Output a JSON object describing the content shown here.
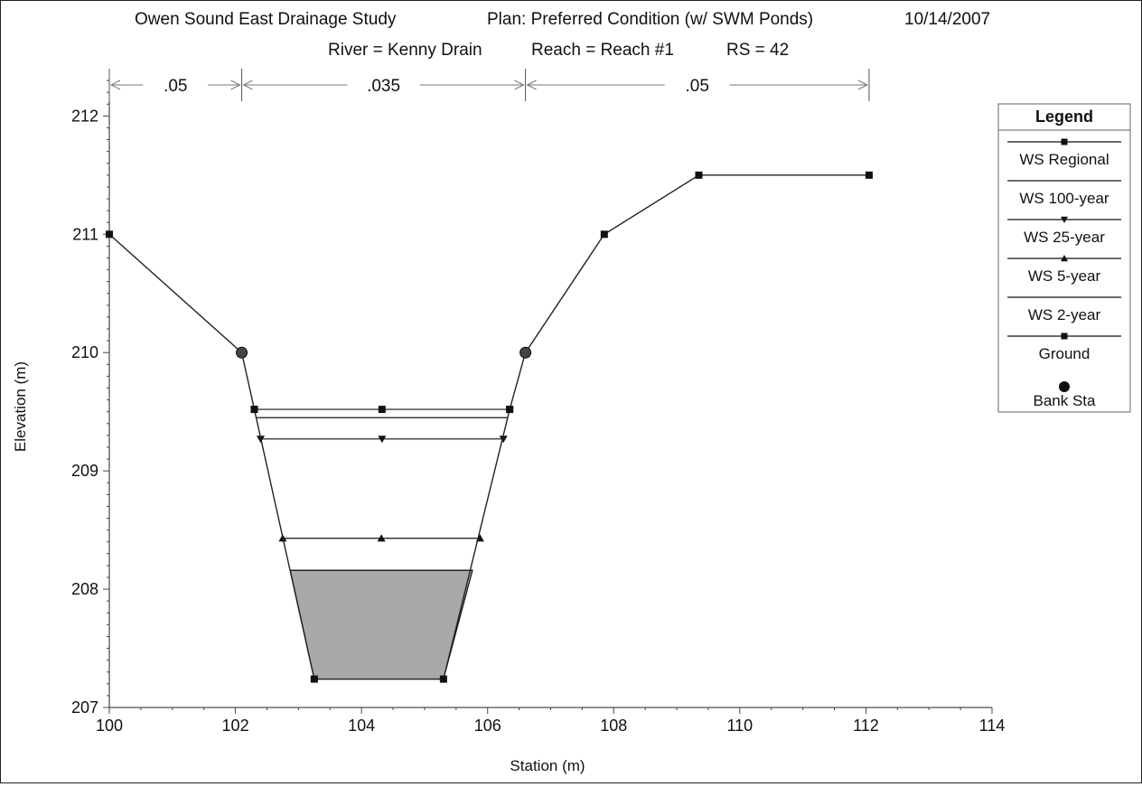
{
  "header": {
    "study": "Owen Sound East Drainage Study",
    "plan": "Plan: Preferred Condition (w/ SWM Ponds)",
    "date": "10/14/2007",
    "river": "River = Kenny Drain",
    "reach": "Reach = Reach #1",
    "rs": "RS = 42"
  },
  "chart_data": {
    "type": "line",
    "xlabel": "Station (m)",
    "ylabel": "Elevation (m)",
    "xlim": [
      100,
      114
    ],
    "ylim": [
      207,
      212.4
    ],
    "x_ticks": [
      100,
      102,
      104,
      106,
      108,
      110,
      112,
      114
    ],
    "y_ticks": [
      207,
      208,
      209,
      210,
      211,
      212
    ],
    "grid": false,
    "legend": {
      "title": "Legend",
      "placement": "right",
      "entries": [
        "WS Regional",
        "WS 100-year",
        "WS 25-year",
        "WS 5-year",
        "WS 2-year",
        "Ground",
        "Bank Sta"
      ]
    },
    "manning": [
      {
        "label": ".05",
        "from": 100,
        "to": 102.1
      },
      {
        "label": ".035",
        "from": 102.1,
        "to": 106.6
      },
      {
        "label": ".05",
        "from": 106.6,
        "to": 112.05
      }
    ],
    "ground": {
      "x": [
        100,
        102.1,
        102.3,
        103.25,
        105.3,
        106.35,
        106.6,
        107.85,
        109.35,
        112.05
      ],
      "y": [
        211.0,
        210.0,
        209.52,
        207.24,
        207.24,
        209.52,
        210.0,
        211.0,
        211.5,
        211.5
      ]
    },
    "bank_stations": [
      {
        "x": 102.1,
        "y": 210.0
      },
      {
        "x": 106.6,
        "y": 210.0
      }
    ],
    "water_surfaces": [
      {
        "name": "WS Regional",
        "elevation": 209.52,
        "x": [
          102.3,
          106.35
        ],
        "marker": "square"
      },
      {
        "name": "WS 100-year",
        "elevation": 209.45,
        "x": [
          102.33,
          106.32
        ],
        "marker": "none"
      },
      {
        "name": "WS 25-year",
        "elevation": 209.27,
        "x": [
          102.4,
          106.25
        ],
        "marker": "triangle-down"
      },
      {
        "name": "WS 5-year",
        "elevation": 208.43,
        "x": [
          102.75,
          105.88
        ],
        "marker": "triangle-up"
      },
      {
        "name": "WS 2-year",
        "elevation": 208.16,
        "x": [
          102.87,
          105.76
        ],
        "marker": "none",
        "filled": true
      }
    ],
    "colors": {
      "ground": "#222222",
      "water_fill": "#a9a9a9",
      "bank": "#444444"
    }
  }
}
